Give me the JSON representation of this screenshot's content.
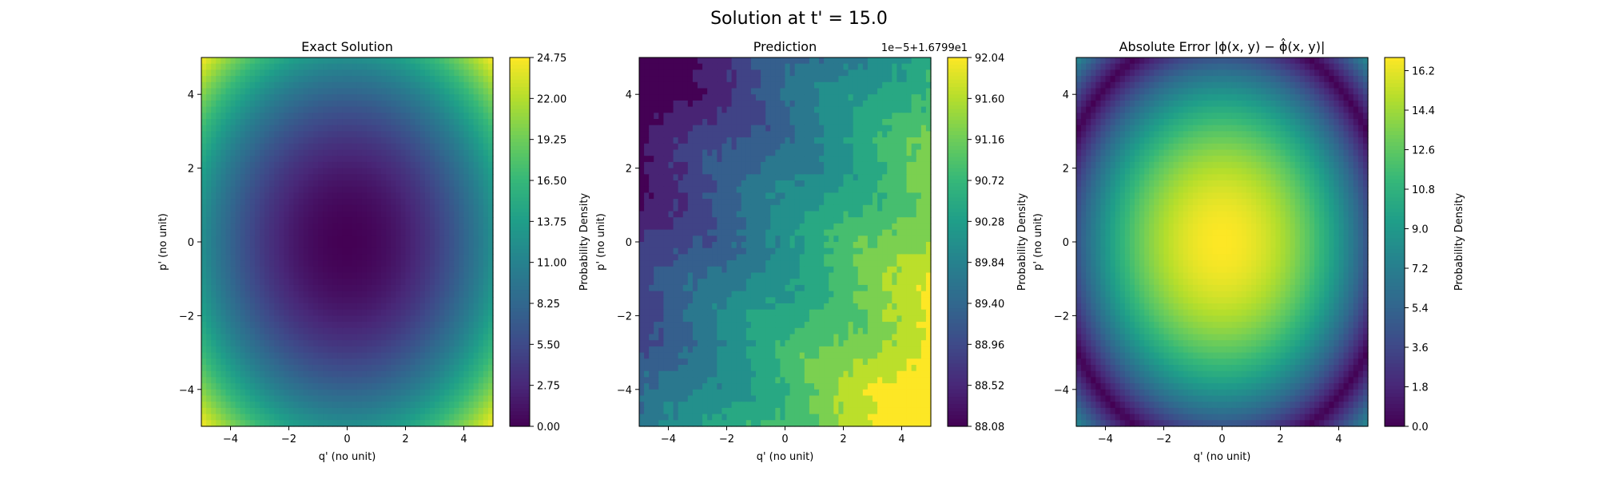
{
  "figure": {
    "title": "Solution at t' = 15.0"
  },
  "chart_data": [
    {
      "type": "heatmap",
      "title": "Exact Solution",
      "xlabel": "q' (no unit)",
      "ylabel": "p' (no unit)",
      "xlim": [
        -5,
        5
      ],
      "ylim": [
        -5,
        5
      ],
      "xticks": [
        "−4",
        "−2",
        "0",
        "2",
        "4"
      ],
      "yticks": [
        "4",
        "2",
        "0",
        "−2",
        "−4"
      ],
      "colorbar": {
        "label": "Probability Density",
        "range": [
          0,
          24.75
        ],
        "ticks": [
          "24.75",
          "22.00",
          "19.25",
          "16.50",
          "13.75",
          "11.00",
          "8.25",
          "5.50",
          "2.75",
          "0.00"
        ],
        "offset_text": ""
      },
      "field": "exact",
      "colormap": "viridis"
    },
    {
      "type": "heatmap",
      "title": "Prediction",
      "xlabel": "q' (no unit)",
      "ylabel": "p' (no unit)",
      "xlim": [
        -5,
        5
      ],
      "ylim": [
        -5,
        5
      ],
      "xticks": [
        "−4",
        "−2",
        "0",
        "2",
        "4"
      ],
      "yticks": [
        "4",
        "2",
        "0",
        "−2",
        "−4"
      ],
      "colorbar": {
        "label": "Probability Density",
        "range": [
          88.08,
          92.04
        ],
        "ticks": [
          "92.04",
          "91.60",
          "91.16",
          "90.72",
          "90.28",
          "89.84",
          "89.40",
          "88.96",
          "88.52",
          "88.08"
        ],
        "offset_text": "1e−5+1.6799e1"
      },
      "field": "prediction",
      "colormap": "viridis"
    },
    {
      "type": "heatmap",
      "title": "Absolute Error |ϕ(x, y) − ϕ̂(x, y)|",
      "xlabel": "q' (no unit)",
      "ylabel": "p' (no unit)",
      "xlim": [
        -5,
        5
      ],
      "ylim": [
        -5,
        5
      ],
      "xticks": [
        "−4",
        "−2",
        "0",
        "2",
        "4"
      ],
      "yticks": [
        "4",
        "2",
        "0",
        "−2",
        "−4"
      ],
      "colorbar": {
        "label": "Probability Density",
        "range": [
          0,
          16.8
        ],
        "ticks": [
          "16.2",
          "14.4",
          "12.6",
          "10.8",
          "9.0",
          "7.2",
          "5.4",
          "3.6",
          "1.8",
          "0.0"
        ],
        "offset_text": ""
      },
      "field": "error",
      "colormap": "viridis"
    }
  ]
}
